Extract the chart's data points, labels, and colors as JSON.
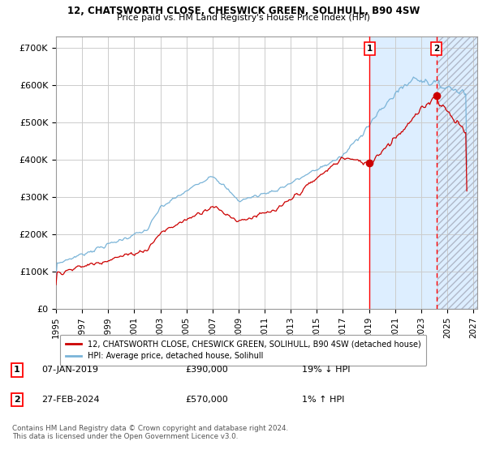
{
  "title_line1": "12, CHATSWORTH CLOSE, CHESWICK GREEN, SOLIHULL, B90 4SW",
  "title_line2": "Price paid vs. HM Land Registry's House Price Index (HPI)",
  "ylabel_ticks": [
    "£0",
    "£100K",
    "£200K",
    "£300K",
    "£400K",
    "£500K",
    "£600K",
    "£700K"
  ],
  "ylabel_values": [
    0,
    100000,
    200000,
    300000,
    400000,
    500000,
    600000,
    700000
  ],
  "ylim": [
    0,
    730000
  ],
  "xlim_start": 1995.0,
  "xlim_end": 2027.3,
  "hpi_color": "#7ab4d8",
  "price_color": "#cc0000",
  "shade_color": "#ddeeff",
  "vline1_x": 2019.04,
  "vline2_x": 2024.16,
  "dot1_y": 390000,
  "dot2_y": 570000,
  "label1_num": "1",
  "label2_num": "2",
  "legend_line1": "12, CHATSWORTH CLOSE, CHESWICK GREEN, SOLIHULL, B90 4SW (detached house)",
  "legend_line2": "HPI: Average price, detached house, Solihull",
  "table_row1": [
    "1",
    "07-JAN-2019",
    "£390,000",
    "19% ↓ HPI"
  ],
  "table_row2": [
    "2",
    "27-FEB-2024",
    "£570,000",
    "1% ↑ HPI"
  ],
  "footnote1": "Contains HM Land Registry data © Crown copyright and database right 2024.",
  "footnote2": "This data is licensed under the Open Government Licence v3.0.",
  "hatch_start": 2024.25,
  "shade_start": 2019.04,
  "xtick_years": [
    1995,
    1997,
    1999,
    2001,
    2003,
    2005,
    2007,
    2009,
    2011,
    2013,
    2015,
    2017,
    2019,
    2021,
    2023,
    2025,
    2027
  ]
}
